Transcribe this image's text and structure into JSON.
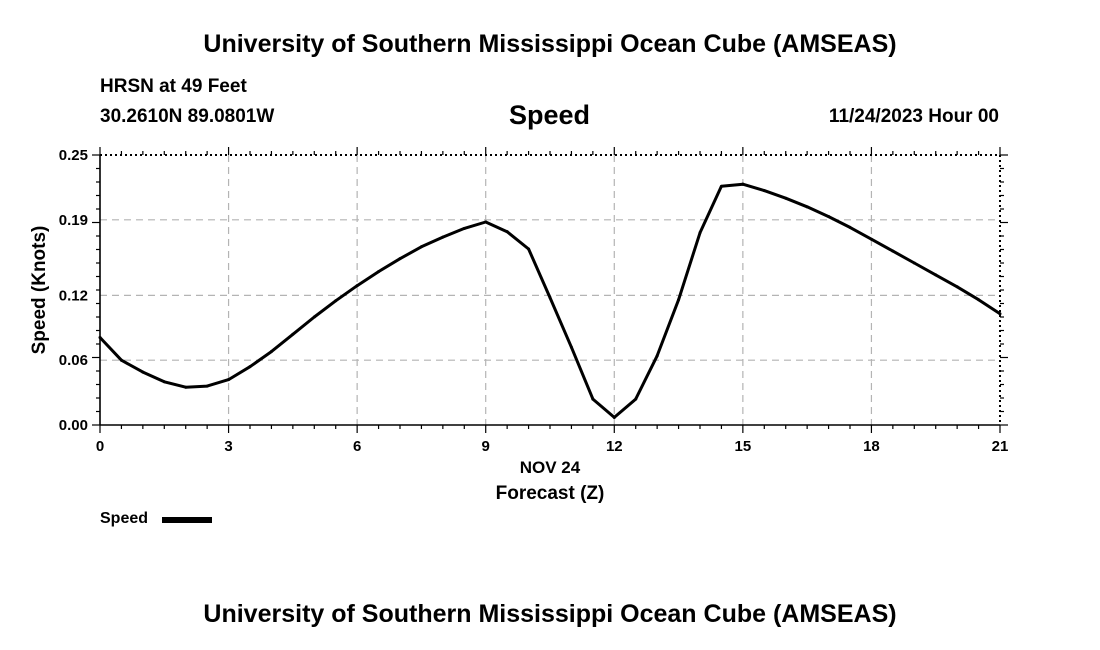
{
  "header": {
    "title": "University of Southern Mississippi Ocean Cube (AMSEAS)",
    "station": "HRSN at 49 Feet",
    "coords": "30.2610N  89.0801W",
    "variable": "Speed",
    "datetime": "11/24/2023 Hour 00"
  },
  "footer": {
    "title": "University of Southern Mississippi Ocean Cube (AMSEAS)"
  },
  "chart_data": {
    "type": "line",
    "title": "Speed",
    "xlabel": "Forecast (Z)",
    "xlabel_date": "NOV 24",
    "ylabel": "Speed (Knots)",
    "xlim": [
      0,
      21
    ],
    "ylim": [
      0,
      0.25
    ],
    "x_ticks": [
      "0",
      "3",
      "6",
      "9",
      "12",
      "15",
      "18",
      "21"
    ],
    "y_ticks": [
      "0.00",
      "0.06",
      "0.12",
      "0.19",
      "0.25"
    ],
    "grid": true,
    "legend": "bottom-left",
    "series": [
      {
        "name": "Speed",
        "color": "#000000",
        "x": [
          0,
          0.5,
          1,
          1.5,
          2,
          2.5,
          3,
          3.5,
          4,
          4.5,
          5,
          5.5,
          6,
          6.5,
          7,
          7.5,
          8,
          8.5,
          9,
          9.5,
          10,
          10.5,
          11,
          11.5,
          12,
          12.5,
          13,
          13.5,
          14,
          14.5,
          15,
          15.5,
          16,
          16.5,
          17,
          17.5,
          18,
          18.5,
          19,
          19.5,
          20,
          20.5,
          21
        ],
        "y": [
          0.081,
          0.06,
          0.049,
          0.04,
          0.035,
          0.036,
          0.042,
          0.054,
          0.068,
          0.084,
          0.1,
          0.115,
          0.129,
          0.142,
          0.154,
          0.165,
          0.174,
          0.182,
          0.188,
          0.179,
          0.163,
          0.118,
          0.072,
          0.024,
          0.007,
          0.024,
          0.064,
          0.116,
          0.178,
          0.221,
          0.223,
          0.217,
          0.21,
          0.202,
          0.193,
          0.183,
          0.172,
          0.161,
          0.15,
          0.139,
          0.128,
          0.116,
          0.103
        ]
      }
    ]
  }
}
